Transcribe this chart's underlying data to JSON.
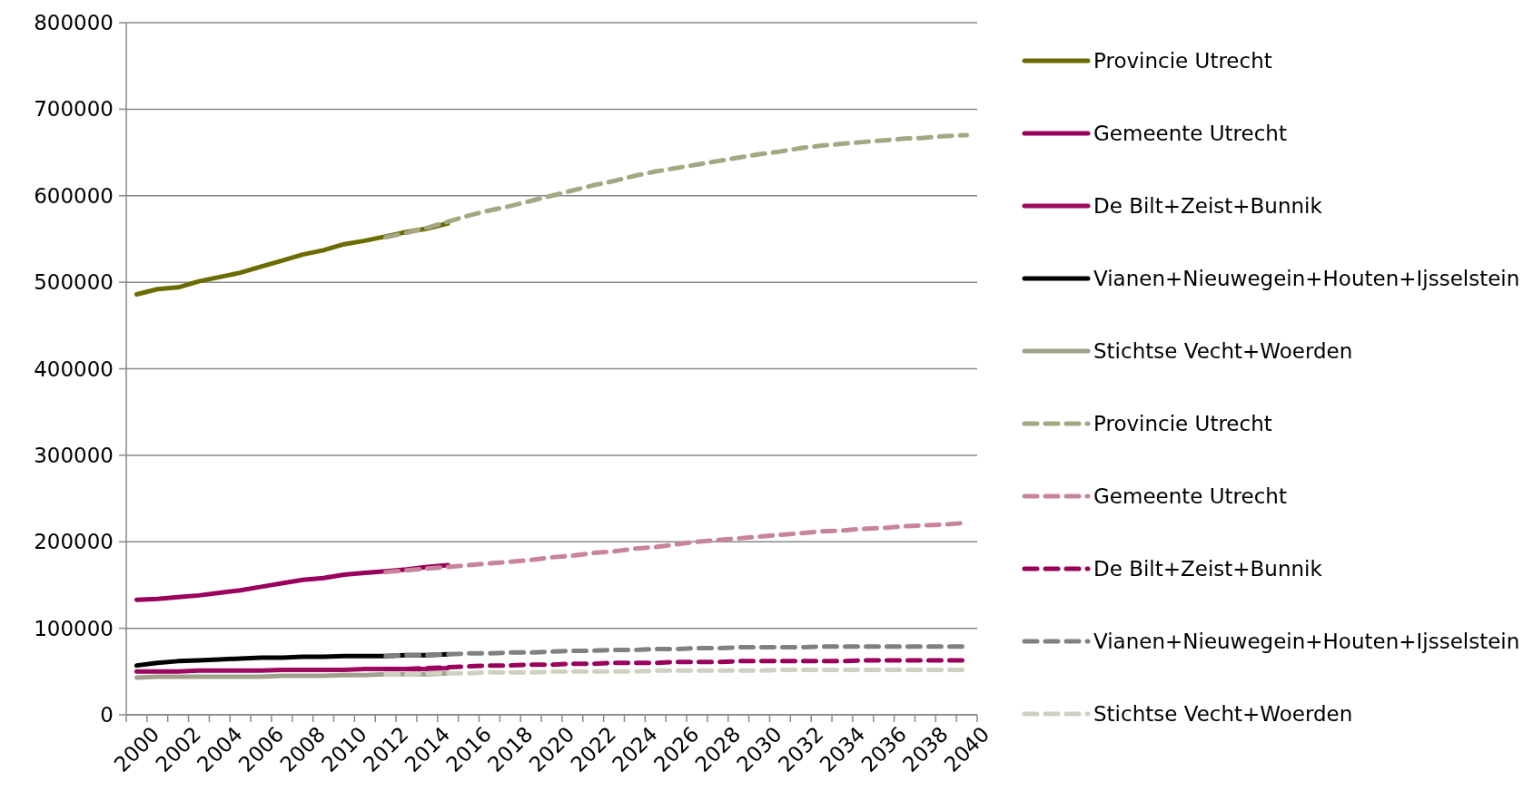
{
  "chart_data": {
    "type": "line",
    "categories": [
      "2000",
      null,
      "2002",
      null,
      "2004",
      null,
      "2006",
      null,
      "2008",
      null,
      "2010",
      null,
      "2012",
      null,
      "2014",
      null,
      "2016",
      null,
      "2018",
      null,
      "2020",
      null,
      "2022",
      null,
      "2024",
      null,
      "2026",
      null,
      "2028",
      null,
      "2030",
      null,
      "2032",
      null,
      "2034",
      null,
      "2036",
      null,
      "2038",
      null,
      "2040"
    ],
    "ylim": [
      0,
      800000
    ],
    "yticks": [
      0,
      100000,
      200000,
      300000,
      400000,
      500000,
      600000,
      700000,
      800000
    ],
    "grid": "y",
    "legend": "right",
    "marker": "none",
    "series": [
      {
        "name": "Provincie Utrecht",
        "color": "#6b6b00",
        "line_style": "solid",
        "values": [
          486000,
          492000,
          494000,
          501000,
          506000,
          511000,
          518000,
          525000,
          532000,
          537000,
          544000,
          548000,
          553000,
          558000,
          562000,
          568000,
          null,
          null,
          null,
          null,
          null,
          null,
          null,
          null,
          null,
          null,
          null,
          null,
          null,
          null,
          null,
          null,
          null,
          null,
          null,
          null,
          null,
          null,
          null,
          null,
          null
        ]
      },
      {
        "name": "Gemeente Utrecht",
        "color": "#99005c",
        "line_style": "solid",
        "values": [
          133000,
          134000,
          136000,
          138000,
          141000,
          144000,
          148000,
          152000,
          156000,
          158000,
          162000,
          164000,
          166000,
          168000,
          171000,
          173000,
          null,
          null,
          null,
          null,
          null,
          null,
          null,
          null,
          null,
          null,
          null,
          null,
          null,
          null,
          null,
          null,
          null,
          null,
          null,
          null,
          null,
          null,
          null,
          null,
          null
        ]
      },
      {
        "name": "De Bilt+Zeist+Bunnik",
        "color": "#9c0a60",
        "line_style": "solid",
        "values": [
          50000,
          50000,
          50000,
          51000,
          51000,
          51000,
          51000,
          52000,
          52000,
          52000,
          52000,
          53000,
          53000,
          53000,
          53000,
          54000,
          null,
          null,
          null,
          null,
          null,
          null,
          null,
          null,
          null,
          null,
          null,
          null,
          null,
          null,
          null,
          null,
          null,
          null,
          null,
          null,
          null,
          null,
          null,
          null,
          null
        ]
      },
      {
        "name": "Vianen+Nieuwegein+Houten+Ijsselstein",
        "color": "#000000",
        "line_style": "solid",
        "values": [
          57000,
          60000,
          62000,
          63000,
          64000,
          65000,
          66000,
          66000,
          67000,
          67000,
          68000,
          68000,
          68000,
          69000,
          69000,
          70000,
          null,
          null,
          null,
          null,
          null,
          null,
          null,
          null,
          null,
          null,
          null,
          null,
          null,
          null,
          null,
          null,
          null,
          null,
          null,
          null,
          null,
          null,
          null,
          null,
          null
        ]
      },
      {
        "name": "Stichtse Vecht+Woerden",
        "color": "#a0a08c",
        "line_style": "solid",
        "values": [
          43000,
          44000,
          44000,
          44000,
          44000,
          44000,
          44000,
          45000,
          45000,
          45000,
          46000,
          46000,
          47000,
          47000,
          47000,
          48000,
          null,
          null,
          null,
          null,
          null,
          null,
          null,
          null,
          null,
          null,
          null,
          null,
          null,
          null,
          null,
          null,
          null,
          null,
          null,
          null,
          null,
          null,
          null,
          null,
          null
        ]
      },
      {
        "name": "Provincie Utrecht",
        "color": "#a4a782",
        "line_style": "dashed",
        "values": [
          null,
          null,
          null,
          null,
          null,
          null,
          null,
          null,
          null,
          null,
          null,
          null,
          552000,
          557000,
          563000,
          570000,
          577000,
          583000,
          588000,
          594000,
          600000,
          606000,
          612000,
          617000,
          623000,
          628000,
          632000,
          636000,
          640000,
          644000,
          648000,
          651000,
          655000,
          658000,
          660000,
          662000,
          664000,
          666000,
          667000,
          669000,
          670000
        ]
      },
      {
        "name": "Gemeente Utrecht",
        "color": "#c8849c",
        "line_style": "dashed",
        "values": [
          null,
          null,
          null,
          null,
          null,
          null,
          null,
          null,
          null,
          null,
          null,
          null,
          165000,
          167000,
          169000,
          171000,
          173000,
          175000,
          177000,
          179000,
          182000,
          184000,
          187000,
          189000,
          192000,
          194000,
          197000,
          200000,
          202000,
          204000,
          206000,
          208000,
          210000,
          212000,
          213000,
          215000,
          216000,
          218000,
          219000,
          220000,
          222000
        ]
      },
      {
        "name": "De Bilt+Zeist+Bunnik",
        "color": "#99005c",
        "line_style": "dashed",
        "values": [
          null,
          null,
          null,
          null,
          null,
          null,
          null,
          null,
          null,
          null,
          null,
          null,
          53000,
          53000,
          54000,
          55000,
          56000,
          57000,
          57000,
          58000,
          58000,
          59000,
          59000,
          60000,
          60000,
          60000,
          61000,
          61000,
          61000,
          62000,
          62000,
          62000,
          62000,
          62000,
          62000,
          63000,
          63000,
          63000,
          63000,
          63000,
          63000
        ]
      },
      {
        "name": "Vianen+Nieuwegein+Houten+Ijsselstein",
        "color": "#808080",
        "line_style": "dashed",
        "values": [
          null,
          null,
          null,
          null,
          null,
          null,
          null,
          null,
          null,
          null,
          null,
          null,
          68000,
          69000,
          69000,
          70000,
          71000,
          71000,
          72000,
          72000,
          73000,
          74000,
          74000,
          75000,
          75000,
          76000,
          76000,
          77000,
          77000,
          78000,
          78000,
          78000,
          78000,
          79000,
          79000,
          79000,
          79000,
          79000,
          79000,
          79000,
          79000
        ]
      },
      {
        "name": "Stichtse Vecht+Woerden",
        "color": "#cfd0c0",
        "line_style": "dashed",
        "values": [
          null,
          null,
          null,
          null,
          null,
          null,
          null,
          null,
          null,
          null,
          null,
          null,
          47000,
          47000,
          48000,
          48000,
          48000,
          49000,
          49000,
          49000,
          50000,
          50000,
          50000,
          50000,
          50000,
          51000,
          51000,
          51000,
          51000,
          51000,
          51000,
          52000,
          52000,
          52000,
          52000,
          52000,
          52000,
          52000,
          52000,
          52000,
          52000
        ]
      }
    ]
  }
}
